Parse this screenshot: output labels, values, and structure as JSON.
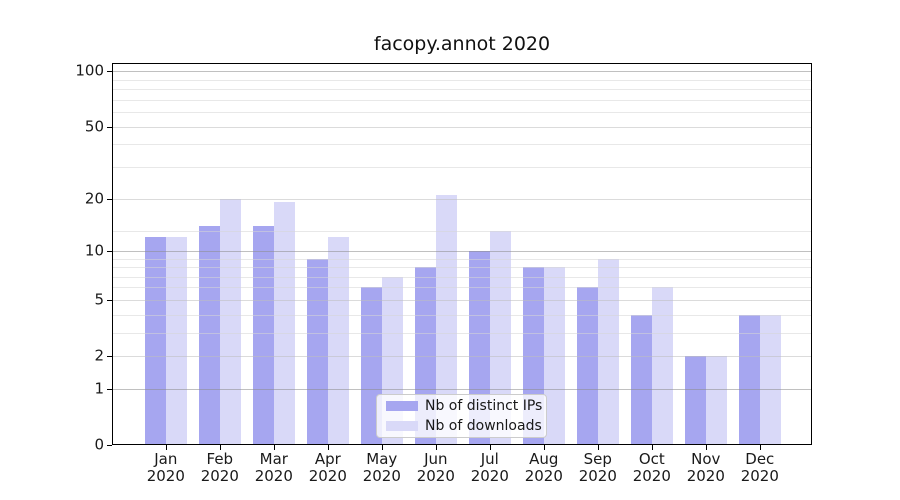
{
  "title": "facopy.annot 2020",
  "chart_data": {
    "type": "bar",
    "title": "facopy.annot 2020",
    "categories": [
      "Jan 2020",
      "Feb 2020",
      "Mar 2020",
      "Apr 2020",
      "May 2020",
      "Jun 2020",
      "Jul 2020",
      "Aug 2020",
      "Sep 2020",
      "Oct 2020",
      "Nov 2020",
      "Dec 2020"
    ],
    "x_tick_month_labels": [
      "Jan",
      "Feb",
      "Mar",
      "Apr",
      "May",
      "Jun",
      "Jul",
      "Aug",
      "Sep",
      "Oct",
      "Nov",
      "Dec"
    ],
    "x_tick_year_label": "2020",
    "series": [
      {
        "name": "Nb of distinct IPs",
        "color": "#a6a6f0",
        "values": [
          12,
          14,
          14,
          9,
          6,
          8,
          10,
          8,
          6,
          4,
          2,
          4
        ]
      },
      {
        "name": "Nb of downloads",
        "color": "#d9d9f8",
        "values": [
          12,
          20,
          19,
          12,
          7,
          21,
          13,
          8,
          9,
          6,
          2,
          4
        ]
      }
    ],
    "y_scale": "log10(1+y)",
    "ylim": [
      0,
      111
    ],
    "y_major_ticks": [
      0,
      1,
      2,
      5,
      10,
      20,
      50,
      100
    ],
    "y_decade_gridlines": [
      1,
      10,
      100
    ],
    "y_intermediate_gridlines": [
      2,
      5,
      20,
      50
    ],
    "y_minor_gridlines": [
      3,
      4,
      6,
      7,
      8,
      9,
      13,
      30,
      40,
      60,
      70,
      80,
      90
    ],
    "grid": true,
    "legend_position": "lower center",
    "colors": {
      "distinct_ips_bar": "#a6a6f0",
      "downloads_bar": "#d9d9f8",
      "decade_grid": "#bcbcbc",
      "intermediate_grid": "#dcdcdc",
      "minor_grid": "#ebebeb",
      "axis": "#000000"
    }
  }
}
